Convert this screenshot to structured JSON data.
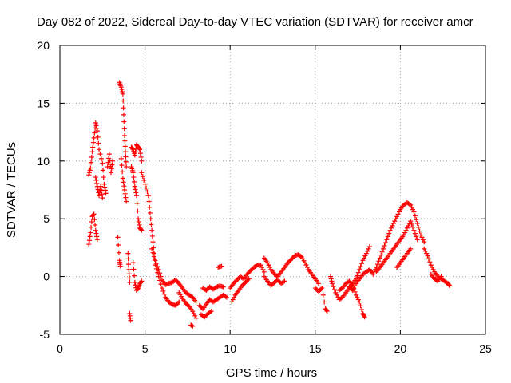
{
  "chart_data": {
    "type": "scatter",
    "title": "Day 082 of 2022, Sidereal Day-to-day VTEC variation (SDTVAR) for receiver amcr",
    "xlabel": "GPS time / hours",
    "ylabel": "SDTVAR / TECUs",
    "xlim": [
      0,
      25
    ],
    "ylim": [
      -5,
      20
    ],
    "xticks": [
      "0",
      "5",
      "10",
      "15",
      "20",
      "25"
    ],
    "yticks": [
      "-5",
      "0",
      "5",
      "10",
      "15",
      "20"
    ],
    "grid": true,
    "marker": "+",
    "series": [
      {
        "name": "SDTVAR",
        "color": "#ff0000",
        "points": [
          [
            1.7,
            8.8
          ],
          [
            1.8,
            9.4
          ],
          [
            1.9,
            10.8
          ],
          [
            2.0,
            12.0
          ],
          [
            2.1,
            13.3
          ],
          [
            2.2,
            12.6
          ],
          [
            2.3,
            11.0
          ],
          [
            2.5,
            9.8
          ],
          [
            2.6,
            8.0
          ],
          [
            2.7,
            7.2
          ],
          [
            2.8,
            9.5
          ],
          [
            2.9,
            10.6
          ],
          [
            3.0,
            9.0
          ],
          [
            3.1,
            10.0
          ],
          [
            1.7,
            2.8
          ],
          [
            1.8,
            3.8
          ],
          [
            1.9,
            5.2
          ],
          [
            2.0,
            5.4
          ],
          [
            2.1,
            4.0
          ],
          [
            2.2,
            3.2
          ],
          [
            2.1,
            8.6
          ],
          [
            2.2,
            7.8
          ],
          [
            2.3,
            7.0
          ],
          [
            2.4,
            7.8
          ],
          [
            2.5,
            6.8
          ],
          [
            3.4,
            3.4
          ],
          [
            3.5,
            1.4
          ],
          [
            3.55,
            0.9
          ],
          [
            3.5,
            16.8
          ],
          [
            3.6,
            16.4
          ],
          [
            3.7,
            15.8
          ],
          [
            3.75,
            14.0
          ],
          [
            3.8,
            12.2
          ],
          [
            3.85,
            10.8
          ],
          [
            3.9,
            9.5
          ],
          [
            3.6,
            10.2
          ],
          [
            3.7,
            8.5
          ],
          [
            3.8,
            7.5
          ],
          [
            3.9,
            6.5
          ],
          [
            4.0,
            2.0
          ],
          [
            4.05,
            0.6
          ],
          [
            4.1,
            -0.5
          ],
          [
            4.1,
            -3.2
          ],
          [
            4.15,
            -3.8
          ],
          [
            4.2,
            11.2
          ],
          [
            4.3,
            11.0
          ],
          [
            4.4,
            10.5
          ],
          [
            4.5,
            11.4
          ],
          [
            4.6,
            11.2
          ],
          [
            4.7,
            11.0
          ],
          [
            4.8,
            10.0
          ],
          [
            4.2,
            9.5
          ],
          [
            4.3,
            9.0
          ],
          [
            4.4,
            7.8
          ],
          [
            4.5,
            7.0
          ],
          [
            4.6,
            5.0
          ],
          [
            4.7,
            4.2
          ],
          [
            4.8,
            4.0
          ],
          [
            4.3,
            1.2
          ],
          [
            4.4,
            -0.5
          ],
          [
            4.5,
            -1.2
          ],
          [
            4.6,
            -1.0
          ],
          [
            4.7,
            -0.6
          ],
          [
            4.8,
            -0.4
          ],
          [
            4.8,
            9.0
          ],
          [
            5.0,
            8.0
          ],
          [
            5.2,
            7.0
          ],
          [
            5.3,
            5.5
          ],
          [
            5.4,
            4.0
          ],
          [
            5.5,
            2.5
          ],
          [
            5.6,
            1.0
          ],
          [
            5.8,
            0.0
          ],
          [
            6.0,
            -1.0
          ],
          [
            6.2,
            -1.8
          ],
          [
            6.4,
            -2.2
          ],
          [
            6.6,
            -2.4
          ],
          [
            6.8,
            -2.5
          ],
          [
            7.0,
            -2.2
          ],
          [
            5.4,
            2.4
          ],
          [
            5.6,
            1.4
          ],
          [
            5.8,
            0.6
          ],
          [
            6.0,
            -0.3
          ],
          [
            6.2,
            -0.7
          ],
          [
            6.4,
            -0.6
          ],
          [
            6.6,
            -0.5
          ],
          [
            6.8,
            -0.3
          ],
          [
            7.0,
            -0.6
          ],
          [
            7.2,
            -1.0
          ],
          [
            7.4,
            -1.4
          ],
          [
            7.6,
            -1.6
          ],
          [
            7.8,
            -1.8
          ],
          [
            8.0,
            -2.2
          ],
          [
            7.0,
            -1.4
          ],
          [
            7.2,
            -1.9
          ],
          [
            7.4,
            -2.3
          ],
          [
            7.6,
            -2.6
          ],
          [
            7.8,
            -3.0
          ],
          [
            8.0,
            -3.6
          ],
          [
            7.7,
            -4.2
          ],
          [
            7.8,
            -4.3
          ],
          [
            8.2,
            -2.5
          ],
          [
            8.4,
            -2.8
          ],
          [
            8.6,
            -2.4
          ],
          [
            8.8,
            -2.0
          ],
          [
            9.0,
            -2.2
          ],
          [
            9.2,
            -2.0
          ],
          [
            9.4,
            -1.8
          ],
          [
            9.6,
            -1.6
          ],
          [
            9.8,
            -1.8
          ],
          [
            8.4,
            -1.0
          ],
          [
            8.6,
            -1.2
          ],
          [
            8.8,
            -0.9
          ],
          [
            9.0,
            -1.1
          ],
          [
            9.2,
            -0.9
          ],
          [
            9.4,
            -0.8
          ],
          [
            9.6,
            -0.9
          ],
          [
            8.3,
            -3.3
          ],
          [
            8.5,
            -3.5
          ],
          [
            8.7,
            -3.2
          ],
          [
            8.9,
            -3.0
          ],
          [
            9.3,
            0.8
          ],
          [
            9.5,
            0.9
          ],
          [
            10.0,
            -1.0
          ],
          [
            10.2,
            -0.6
          ],
          [
            10.4,
            -0.3
          ],
          [
            10.6,
            0.0
          ],
          [
            10.8,
            -0.2
          ],
          [
            11.0,
            0.2
          ],
          [
            11.2,
            0.5
          ],
          [
            11.4,
            0.8
          ],
          [
            11.6,
            1.0
          ],
          [
            11.8,
            1.0
          ],
          [
            12.0,
            0.4
          ],
          [
            10.1,
            -2.2
          ],
          [
            10.3,
            -1.6
          ],
          [
            10.5,
            -1.2
          ],
          [
            10.7,
            -0.8
          ],
          [
            10.9,
            -0.5
          ],
          [
            11.1,
            -0.2
          ],
          [
            12.0,
            1.6
          ],
          [
            12.2,
            1.2
          ],
          [
            12.4,
            0.6
          ],
          [
            12.6,
            0.2
          ],
          [
            12.8,
            0.0
          ],
          [
            13.0,
            0.4
          ],
          [
            13.2,
            0.8
          ],
          [
            13.4,
            1.2
          ],
          [
            13.6,
            1.5
          ],
          [
            13.8,
            1.8
          ],
          [
            14.0,
            1.9
          ],
          [
            14.2,
            1.7
          ],
          [
            14.4,
            1.2
          ],
          [
            14.6,
            0.6
          ],
          [
            14.8,
            0.2
          ],
          [
            15.0,
            -0.2
          ],
          [
            15.2,
            -0.6
          ],
          [
            12.0,
            0.0
          ],
          [
            12.2,
            -0.4
          ],
          [
            12.4,
            -0.8
          ],
          [
            12.6,
            -0.5
          ],
          [
            12.8,
            -0.3
          ],
          [
            13.0,
            -0.6
          ],
          [
            13.2,
            -0.4
          ],
          [
            15.0,
            -1.0
          ],
          [
            15.2,
            -1.3
          ],
          [
            15.4,
            -1.0
          ],
          [
            15.6,
            -2.8
          ],
          [
            15.7,
            -3.0
          ],
          [
            15.9,
            0.0
          ],
          [
            16.0,
            -0.6
          ],
          [
            16.2,
            -1.4
          ],
          [
            16.4,
            -2.0
          ],
          [
            16.6,
            -1.8
          ],
          [
            16.8,
            -1.4
          ],
          [
            17.0,
            -1.0
          ],
          [
            17.2,
            -0.6
          ],
          [
            17.4,
            -0.2
          ],
          [
            17.6,
            0.6
          ],
          [
            17.8,
            1.4
          ],
          [
            18.0,
            2.0
          ],
          [
            18.2,
            2.6
          ],
          [
            16.4,
            -1.2
          ],
          [
            16.6,
            -1.0
          ],
          [
            16.8,
            -0.6
          ],
          [
            17.0,
            -0.4
          ],
          [
            17.2,
            -0.8
          ],
          [
            17.4,
            -1.6
          ],
          [
            17.6,
            -2.2
          ],
          [
            17.8,
            -3.2
          ],
          [
            17.9,
            -3.5
          ],
          [
            17.0,
            -0.9
          ],
          [
            17.2,
            -1.2
          ],
          [
            17.4,
            -0.6
          ],
          [
            17.6,
            -0.2
          ],
          [
            17.8,
            0.2
          ],
          [
            18.0,
            0.4
          ],
          [
            18.2,
            0.6
          ],
          [
            18.4,
            0.2
          ],
          [
            18.6,
            0.8
          ],
          [
            18.8,
            1.6
          ],
          [
            19.0,
            2.4
          ],
          [
            19.2,
            3.2
          ],
          [
            19.4,
            4.0
          ],
          [
            19.6,
            4.6
          ],
          [
            19.8,
            5.2
          ],
          [
            20.0,
            5.8
          ],
          [
            20.2,
            6.2
          ],
          [
            20.4,
            6.4
          ],
          [
            20.6,
            6.2
          ],
          [
            20.8,
            5.6
          ],
          [
            21.0,
            4.6
          ],
          [
            21.2,
            3.6
          ],
          [
            21.4,
            3.0
          ],
          [
            18.6,
            0.4
          ],
          [
            18.8,
            0.8
          ],
          [
            19.0,
            1.2
          ],
          [
            19.2,
            1.6
          ],
          [
            19.4,
            2.0
          ],
          [
            19.6,
            2.4
          ],
          [
            19.8,
            2.8
          ],
          [
            20.0,
            3.2
          ],
          [
            20.2,
            3.6
          ],
          [
            20.4,
            4.2
          ],
          [
            20.6,
            4.8
          ],
          [
            20.8,
            4.0
          ],
          [
            21.0,
            3.2
          ],
          [
            19.8,
            0.8
          ],
          [
            20.0,
            1.2
          ],
          [
            20.2,
            1.6
          ],
          [
            20.4,
            2.0
          ],
          [
            20.6,
            2.4
          ],
          [
            21.4,
            2.4
          ],
          [
            21.6,
            1.8
          ],
          [
            21.8,
            1.0
          ],
          [
            22.0,
            0.4
          ],
          [
            22.2,
            0.0
          ],
          [
            22.4,
            -0.2
          ],
          [
            22.6,
            -0.4
          ],
          [
            22.8,
            -0.6
          ],
          [
            22.9,
            -0.8
          ],
          [
            21.8,
            0.2
          ],
          [
            22.0,
            -0.2
          ],
          [
            22.2,
            -0.4
          ],
          [
            22.4,
            0.0
          ]
        ]
      }
    ]
  }
}
